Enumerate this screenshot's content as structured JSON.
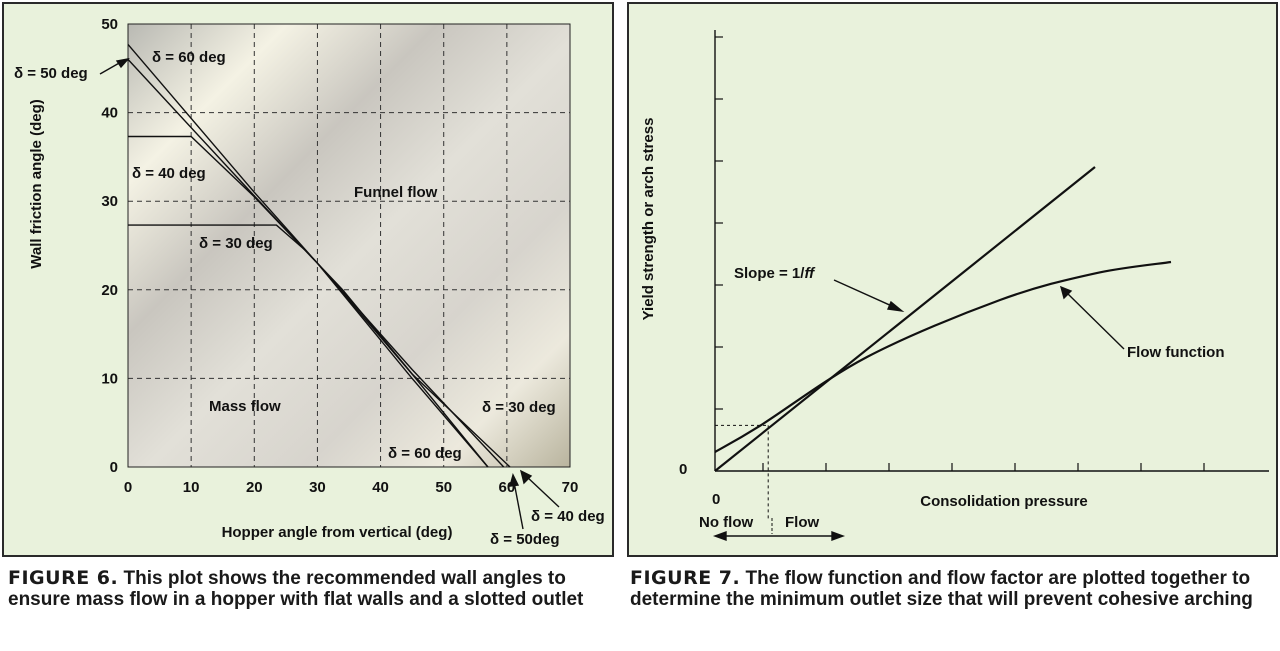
{
  "figure6": {
    "chart_data": {
      "type": "line",
      "xlabel": "Hopper angle from vertical (deg)",
      "ylabel": "Wall friction angle (deg)",
      "xlim": [
        0,
        70
      ],
      "ylim": [
        0,
        50
      ],
      "x_ticks": [
        "0",
        "10",
        "20",
        "30",
        "40",
        "50",
        "60",
        "70"
      ],
      "y_ticks": [
        "0",
        "10",
        "20",
        "30",
        "40",
        "50"
      ],
      "grid": true,
      "series": [
        {
          "name": "δ = 30 deg",
          "points": [
            [
              0,
              27.3
            ],
            [
              23.5,
              27.3
            ],
            [
              28,
              24.5
            ],
            [
              34,
              20
            ],
            [
              45,
              10.5
            ],
            [
              57,
              0
            ]
          ]
        },
        {
          "name": "δ = 40 deg",
          "points": [
            [
              0,
              37.3
            ],
            [
              10,
              37.3
            ],
            [
              20,
              30.5
            ],
            [
              30,
              23
            ],
            [
              45,
              11
            ],
            [
              59.5,
              0
            ]
          ]
        },
        {
          "name": "δ = 50 deg",
          "points": [
            [
              0,
              46
            ],
            [
              20,
              30.6
            ],
            [
              30,
              23
            ],
            [
              45,
              10.5
            ],
            [
              60.5,
              0
            ]
          ]
        },
        {
          "name": "δ = 60 deg",
          "points": [
            [
              0,
              47.7
            ],
            [
              20,
              31
            ],
            [
              30,
              23
            ],
            [
              45,
              10
            ],
            [
              57,
              0
            ]
          ]
        }
      ],
      "annotations": {
        "d50_top": "δ = 50 deg",
        "d60_top": "δ = 60 deg",
        "d40_left": "δ = 40 deg",
        "d30_left": "δ = 30 deg",
        "funnel": "Funnel flow",
        "mass": "Mass flow",
        "d30_right": "δ = 30 deg",
        "d60_bottom": "δ = 60 deg",
        "d40_bottom": "δ = 40 deg",
        "d50_bottom": "δ = 50deg"
      }
    },
    "caption_lead": "FIGURE 6.",
    "caption_text": " This plot shows the recommended wall angles to ensure mass flow in a hopper with flat walls and a slotted outlet"
  },
  "figure7": {
    "chart_data": {
      "type": "line",
      "xlabel": "Consolidation pressure",
      "ylabel": "Yield strength or arch stress",
      "origin_x_label": "0",
      "origin_y_label": "0",
      "series": [
        {
          "name": "Slope = 1/ff",
          "points": [
            [
              0,
              0
            ],
            [
              1,
              0.8
            ]
          ]
        },
        {
          "name": "Flow function",
          "points": [
            [
              0,
              0.05
            ],
            [
              0.12,
              0.12
            ],
            [
              0.4,
              0.3
            ],
            [
              0.75,
              0.45
            ],
            [
              1.0,
              0.52
            ],
            [
              1.2,
              0.55
            ]
          ]
        }
      ],
      "critical_point": {
        "x": 0.14,
        "y": 0.12
      },
      "slope_label_prefix": "Slope = 1/",
      "slope_label_italic": "ff",
      "flow_function_label": "Flow function",
      "no_flow_label": "No flow",
      "flow_label": "Flow"
    },
    "caption_lead": "FIGURE 7.",
    "caption_text": " The flow function and flow factor are plotted together to determine the minimum outlet size that will prevent cohesive arching"
  }
}
